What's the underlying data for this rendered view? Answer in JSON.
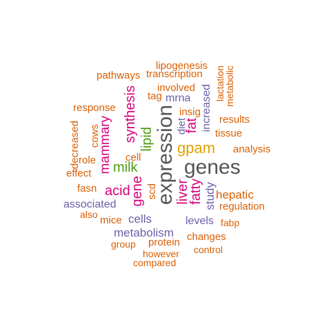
{
  "colors": {
    "orange": "#d95f02",
    "purple": "#6a5fa8",
    "magenta": "#d6007a",
    "green": "#4a9a10",
    "gold": "#e0a400",
    "gray": "#555555"
  },
  "words": [
    {
      "key": "lipogenesis",
      "text": "lipogenesis",
      "color": "orange"
    },
    {
      "key": "pathways",
      "text": "pathways",
      "color": "orange"
    },
    {
      "key": "transcription",
      "text": "transcription",
      "color": "orange"
    },
    {
      "key": "involved",
      "text": "involved",
      "color": "orange"
    },
    {
      "key": "lactation",
      "text": "lactation",
      "color": "orange"
    },
    {
      "key": "metabolic",
      "text": "metabolic",
      "color": "orange"
    },
    {
      "key": "tag",
      "text": "tag",
      "color": "orange"
    },
    {
      "key": "mrna",
      "text": "mrna",
      "color": "purple"
    },
    {
      "key": "response",
      "text": "response",
      "color": "orange"
    },
    {
      "key": "synthesis",
      "text": "synthesis",
      "color": "magenta"
    },
    {
      "key": "insig",
      "text": "insig",
      "color": "orange"
    },
    {
      "key": "increased",
      "text": "increased",
      "color": "purple"
    },
    {
      "key": "results",
      "text": "results",
      "color": "orange"
    },
    {
      "key": "mammary",
      "text": "mammary",
      "color": "magenta"
    },
    {
      "key": "cows",
      "text": "cows",
      "color": "orange"
    },
    {
      "key": "decreased",
      "text": "decreased",
      "color": "orange"
    },
    {
      "key": "diet",
      "text": "diet",
      "color": "purple"
    },
    {
      "key": "fat",
      "text": "fat",
      "color": "magenta"
    },
    {
      "key": "tissue",
      "text": "tissue",
      "color": "orange"
    },
    {
      "key": "expression",
      "text": "expression",
      "color": "gray"
    },
    {
      "key": "lipid",
      "text": "lipid",
      "color": "green"
    },
    {
      "key": "gpam",
      "text": "gpam",
      "color": "gold"
    },
    {
      "key": "analysis",
      "text": "analysis",
      "color": "orange"
    },
    {
      "key": "cell",
      "text": "cell",
      "color": "orange"
    },
    {
      "key": "role",
      "text": "role",
      "color": "orange"
    },
    {
      "key": "milk",
      "text": "milk",
      "color": "green"
    },
    {
      "key": "genes",
      "text": "genes",
      "color": "gray"
    },
    {
      "key": "effect",
      "text": "effect",
      "color": "orange"
    },
    {
      "key": "fasn",
      "text": "fasn",
      "color": "orange"
    },
    {
      "key": "acid",
      "text": "acid",
      "color": "magenta"
    },
    {
      "key": "gene",
      "text": "gene",
      "color": "magenta"
    },
    {
      "key": "scd",
      "text": "scd",
      "color": "orange"
    },
    {
      "key": "liver",
      "text": "liver",
      "color": "magenta"
    },
    {
      "key": "fatty",
      "text": "fatty",
      "color": "magenta"
    },
    {
      "key": "study",
      "text": "study",
      "color": "purple"
    },
    {
      "key": "hepatic",
      "text": "hepatic",
      "color": "orange"
    },
    {
      "key": "associated",
      "text": "associated",
      "color": "purple"
    },
    {
      "key": "regulation",
      "text": "regulation",
      "color": "orange"
    },
    {
      "key": "also",
      "text": "also",
      "color": "orange"
    },
    {
      "key": "mice",
      "text": "mice",
      "color": "orange"
    },
    {
      "key": "cells",
      "text": "cells",
      "color": "purple"
    },
    {
      "key": "levels",
      "text": "levels",
      "color": "purple"
    },
    {
      "key": "fabp",
      "text": "fabp",
      "color": "orange"
    },
    {
      "key": "metabolism",
      "text": "metabolism",
      "color": "purple"
    },
    {
      "key": "changes",
      "text": "changes",
      "color": "orange"
    },
    {
      "key": "group",
      "text": "group",
      "color": "orange"
    },
    {
      "key": "protein",
      "text": "protein",
      "color": "orange"
    },
    {
      "key": "control",
      "text": "control",
      "color": "orange"
    },
    {
      "key": "however",
      "text": "however",
      "color": "orange"
    },
    {
      "key": "compared",
      "text": "compared",
      "color": "orange"
    }
  ]
}
